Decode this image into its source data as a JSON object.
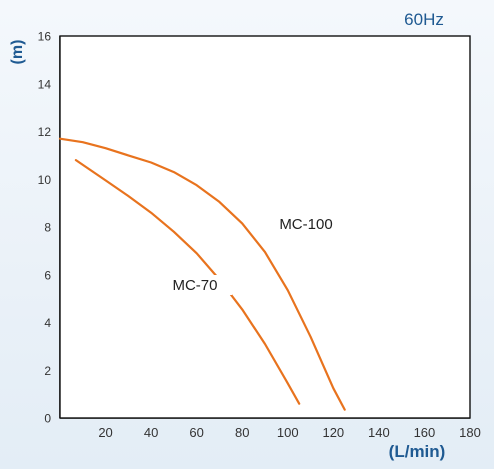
{
  "chart_data": {
    "type": "line",
    "title": "60Hz",
    "ylabel": "(m)",
    "xlabel": "(L/min)",
    "xlim": [
      0,
      180
    ],
    "ylim": [
      0,
      16
    ],
    "x_ticks": [
      "20",
      "40",
      "60",
      "80",
      "100",
      "120",
      "140",
      "160",
      "180"
    ],
    "y_ticks": [
      "0",
      "2",
      "4",
      "6",
      "8",
      "10",
      "12",
      "14",
      "16"
    ],
    "grid": true,
    "series": [
      {
        "name": "MC-100",
        "x": [
          0,
          10,
          20,
          30,
          40,
          50,
          60,
          70,
          80,
          90,
          100,
          110,
          120,
          125
        ],
        "y": [
          11.7,
          11.55,
          11.3,
          11.0,
          10.7,
          10.3,
          9.75,
          9.05,
          8.15,
          6.95,
          5.35,
          3.4,
          1.25,
          0.35
        ]
      },
      {
        "name": "MC-70",
        "x": [
          7,
          20,
          30,
          40,
          50,
          60,
          70,
          80,
          90,
          100,
          105
        ],
        "y": [
          10.8,
          9.95,
          9.3,
          8.6,
          7.8,
          6.9,
          5.8,
          4.55,
          3.1,
          1.45,
          0.6
        ]
      }
    ],
    "annotations": [
      "MC-100",
      "MC-70"
    ],
    "colors": {
      "curve": "#e8731e",
      "axis_text": "#1f5a92",
      "grid": "#111111"
    }
  }
}
